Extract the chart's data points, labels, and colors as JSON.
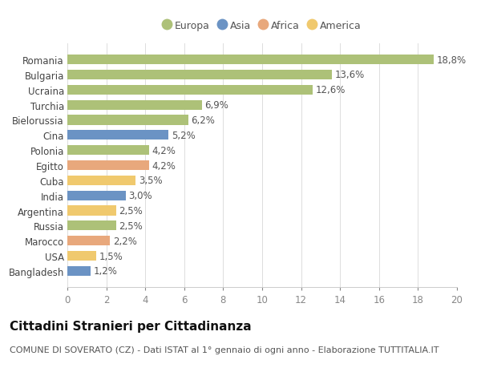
{
  "categories": [
    "Romania",
    "Bulgaria",
    "Ucraina",
    "Turchia",
    "Bielorussia",
    "Cina",
    "Polonia",
    "Egitto",
    "Cuba",
    "India",
    "Argentina",
    "Russia",
    "Marocco",
    "USA",
    "Bangladesh"
  ],
  "values": [
    18.8,
    13.6,
    12.6,
    6.9,
    6.2,
    5.2,
    4.2,
    4.2,
    3.5,
    3.0,
    2.5,
    2.5,
    2.2,
    1.5,
    1.2
  ],
  "labels": [
    "18,8%",
    "13,6%",
    "12,6%",
    "6,9%",
    "6,2%",
    "5,2%",
    "4,2%",
    "4,2%",
    "3,5%",
    "3,0%",
    "2,5%",
    "2,5%",
    "2,2%",
    "1,5%",
    "1,2%"
  ],
  "continents": [
    "Europa",
    "Europa",
    "Europa",
    "Europa",
    "Europa",
    "Asia",
    "Europa",
    "Africa",
    "America",
    "Asia",
    "America",
    "Europa",
    "Africa",
    "America",
    "Asia"
  ],
  "continent_colors": {
    "Europa": "#adc178",
    "Asia": "#6b93c4",
    "Africa": "#e8a87c",
    "America": "#f0c96e"
  },
  "legend_order": [
    "Europa",
    "Asia",
    "Africa",
    "America"
  ],
  "xlim": [
    0,
    20
  ],
  "xticks": [
    0,
    2,
    4,
    6,
    8,
    10,
    12,
    14,
    16,
    18,
    20
  ],
  "title": "Cittadini Stranieri per Cittadinanza",
  "subtitle": "COMUNE DI SOVERATO (CZ) - Dati ISTAT al 1° gennaio di ogni anno - Elaborazione TUTTITALIA.IT",
  "background_color": "#ffffff",
  "bar_height": 0.65,
  "label_fontsize": 8.5,
  "tick_fontsize": 8.5,
  "title_fontsize": 11,
  "subtitle_fontsize": 8
}
